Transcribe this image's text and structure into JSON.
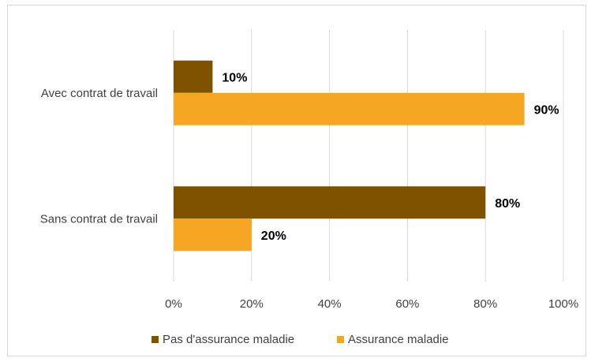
{
  "chart_data": {
    "type": "bar",
    "orientation": "horizontal",
    "categories": [
      "Avec contrat de travail",
      "Sans contrat de travail"
    ],
    "series": [
      {
        "name": "Pas d'assurance maladie",
        "values": [
          10,
          80
        ],
        "labels": [
          "10%",
          "80%"
        ],
        "color": "#7f5200"
      },
      {
        "name": "Assurance maladie",
        "values": [
          90,
          20
        ],
        "labels": [
          "90%",
          "20%"
        ],
        "color": "#f5a623"
      }
    ],
    "xlim": [
      0,
      100
    ],
    "x_ticks": [
      "0%",
      "20%",
      "40%",
      "60%",
      "80%",
      "100%"
    ],
    "grid": true,
    "legend_position": "bottom"
  }
}
